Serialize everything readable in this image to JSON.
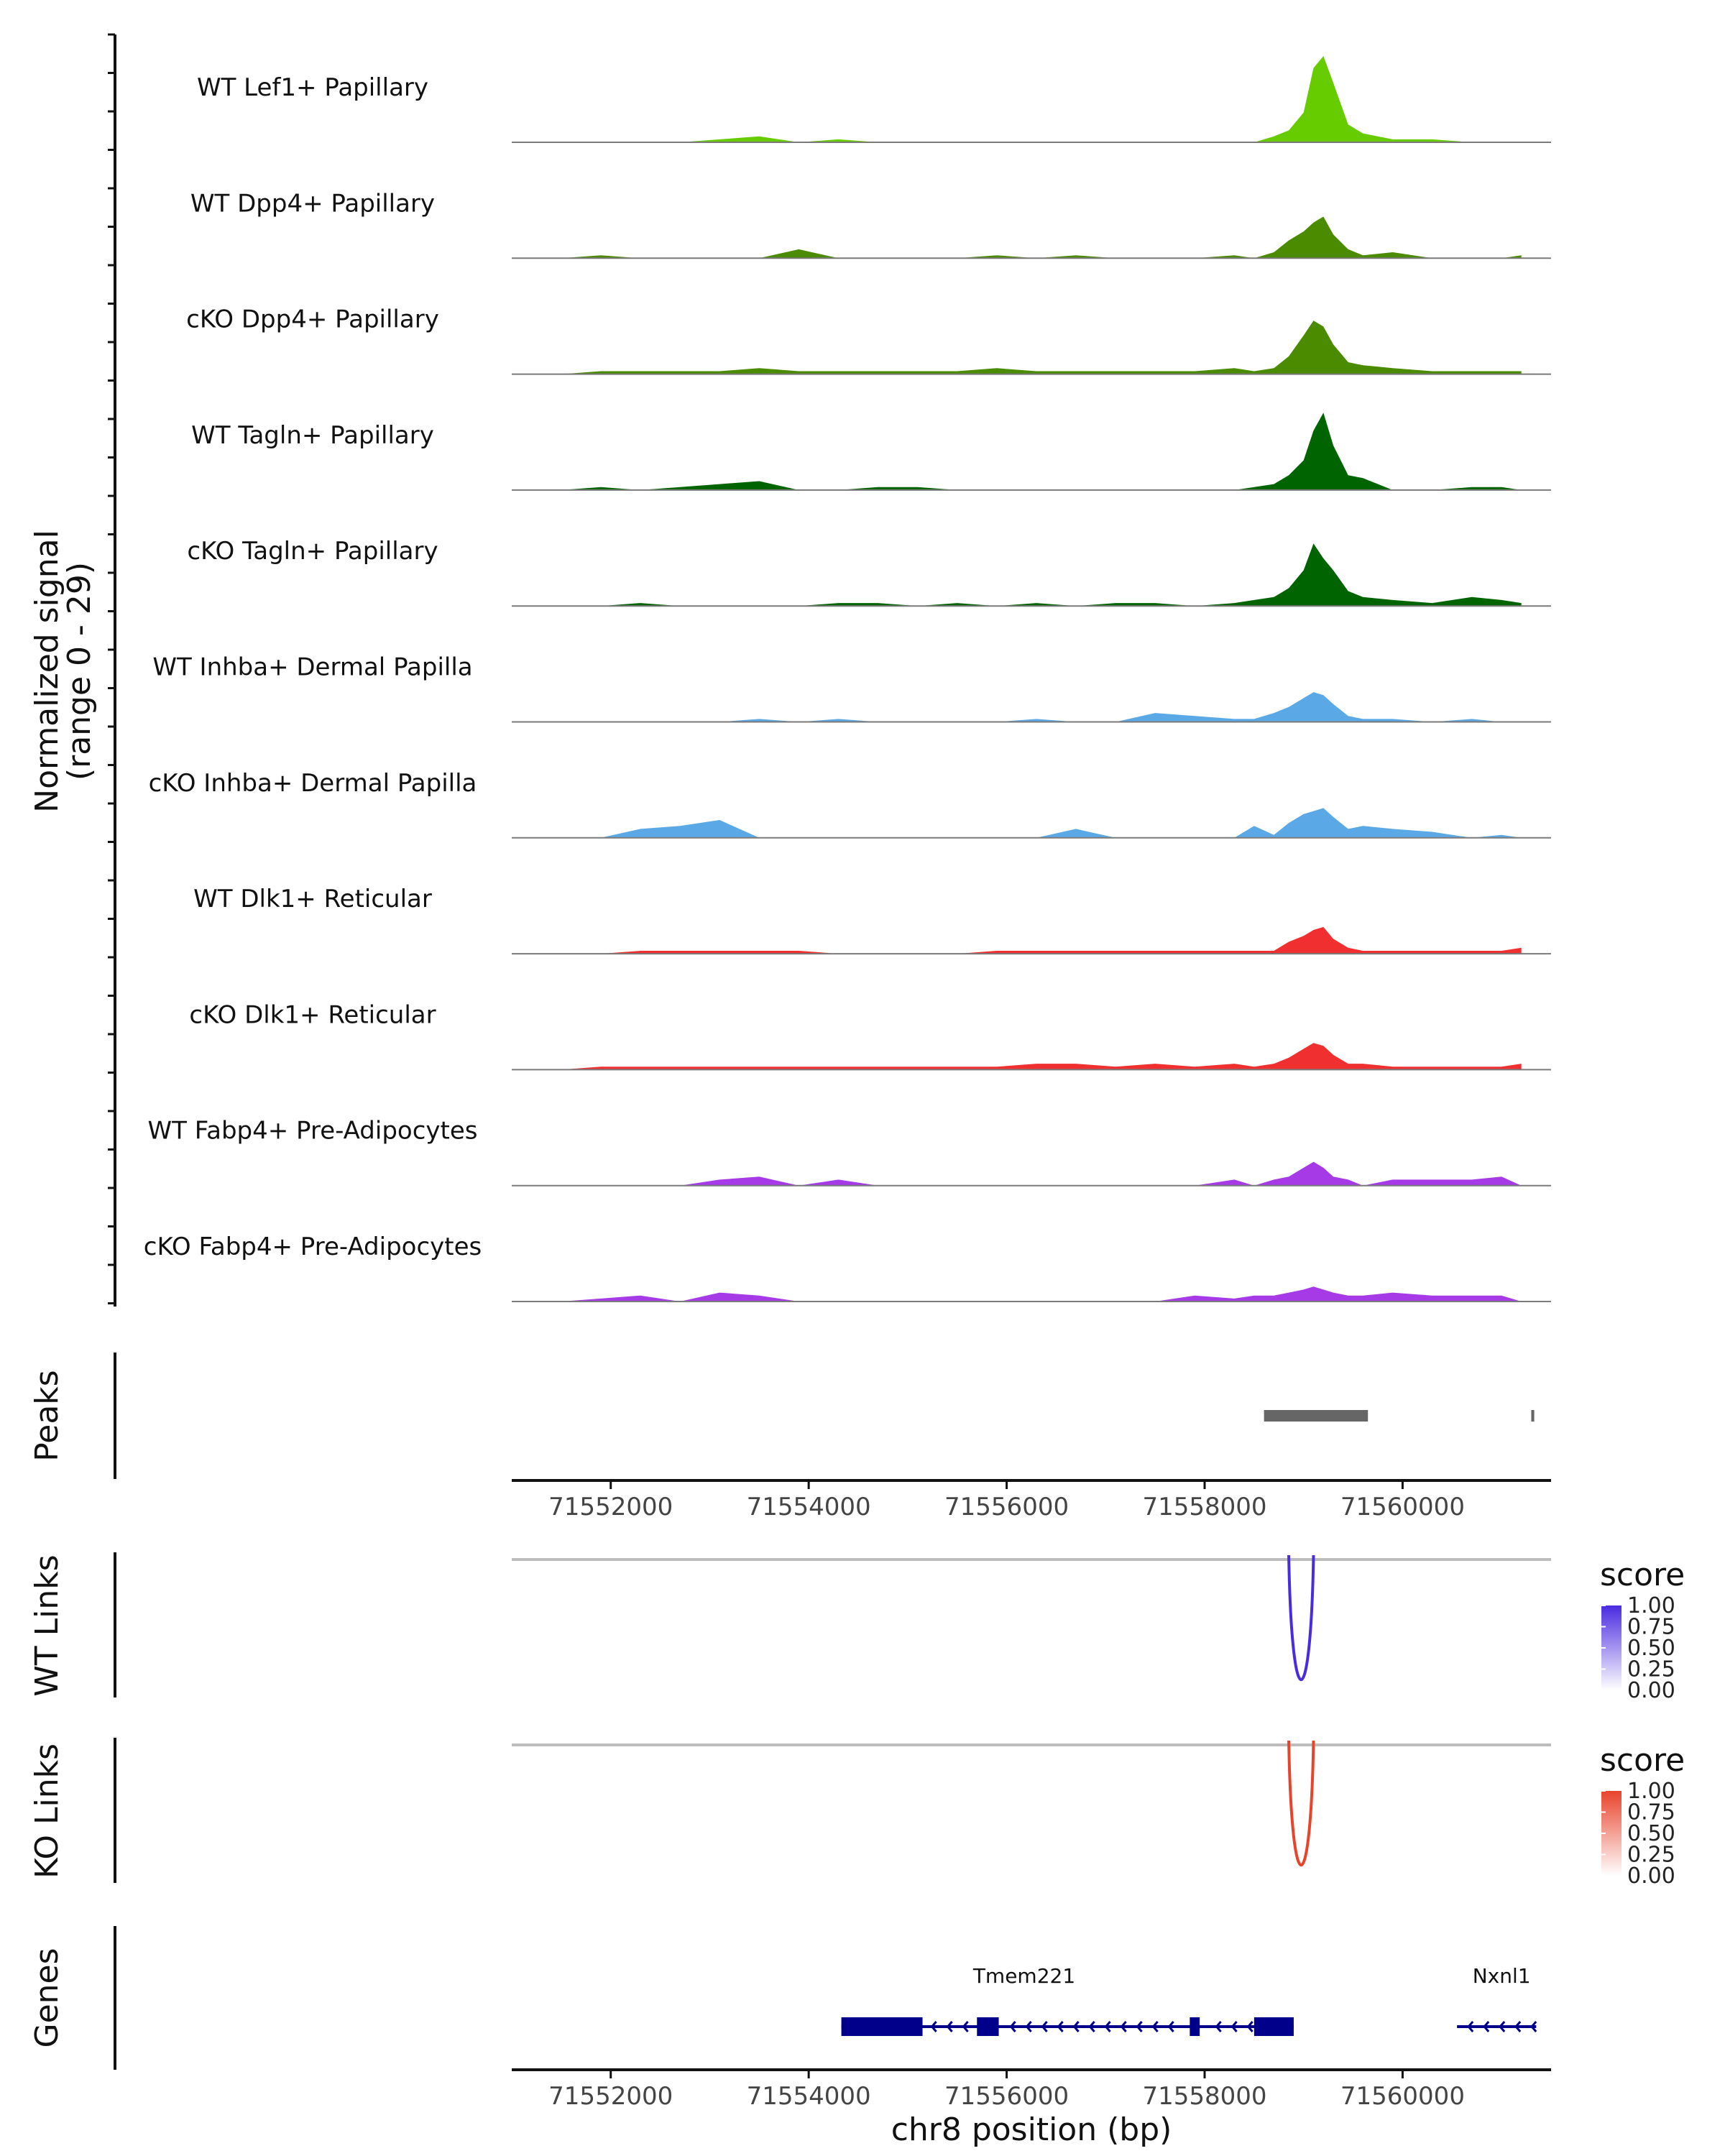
{
  "chart_data": {
    "type": "area",
    "title": "",
    "xlabel": "chr8 position (bp)",
    "xlim": [
      71551000,
      71561500
    ],
    "xticks": [
      71552000,
      71554000,
      71556000,
      71558000,
      71560000
    ],
    "xtick_labels": [
      "71552000",
      "71554000",
      "71556000",
      "71558000",
      "71560000"
    ],
    "coverage": {
      "ylabel_line1": "Normalized signal",
      "ylabel_line2": "(range 0 - 29)",
      "ylim": [
        0,
        29
      ],
      "x": [
        71551500,
        71551900,
        71552300,
        71552700,
        71553100,
        71553500,
        71553900,
        71554300,
        71554700,
        71555100,
        71555500,
        71555900,
        71556300,
        71556700,
        71557100,
        71557500,
        71557900,
        71558300,
        71558500,
        71558700,
        71558850,
        71559000,
        71559100,
        71559200,
        71559300,
        71559450,
        71559600,
        71559900,
        71560300,
        71560700,
        71561000,
        71561200
      ],
      "series": [
        {
          "name": "WT Lef1+ Papillary",
          "color": "#66cc00",
          "values": [
            0,
            0,
            0,
            0,
            1,
            2,
            0,
            1,
            0,
            0,
            0,
            0,
            0,
            0,
            0,
            0,
            0,
            0,
            0,
            2,
            4,
            10,
            25,
            29,
            20,
            6,
            3,
            1,
            1,
            0,
            0,
            0
          ]
        },
        {
          "name": "WT Dpp4+ Papillary",
          "color": "#4b8b00",
          "values": [
            0,
            1,
            0,
            0,
            0,
            0,
            3,
            0,
            0,
            0,
            0,
            1,
            0,
            1,
            0,
            0,
            0,
            1,
            0,
            2,
            6,
            9,
            12,
            14,
            8,
            3,
            1,
            2,
            0,
            0,
            0,
            1
          ]
        },
        {
          "name": "cKO Dpp4+ Papillary",
          "color": "#4b8b00",
          "values": [
            0,
            1,
            1,
            1,
            1,
            2,
            1,
            1,
            1,
            1,
            1,
            2,
            1,
            1,
            1,
            1,
            1,
            2,
            1,
            2,
            6,
            13,
            18,
            16,
            10,
            4,
            3,
            2,
            1,
            1,
            1,
            1
          ]
        },
        {
          "name": "WT Tagln+ Papillary",
          "color": "#006400",
          "values": [
            0,
            1,
            0,
            1,
            2,
            3,
            0,
            0,
            1,
            1,
            0,
            0,
            0,
            0,
            0,
            0,
            0,
            0,
            1,
            2,
            5,
            10,
            20,
            26,
            15,
            5,
            4,
            0,
            0,
            1,
            1,
            0
          ]
        },
        {
          "name": "cKO Tagln+ Papillary",
          "color": "#006400",
          "values": [
            0,
            0,
            1,
            0,
            0,
            0,
            0,
            1,
            1,
            0,
            1,
            0,
            1,
            0,
            1,
            1,
            0,
            1,
            2,
            3,
            6,
            12,
            21,
            16,
            12,
            5,
            3,
            2,
            1,
            3,
            2,
            1
          ]
        },
        {
          "name": "WT Inhba+ Dermal Papilla",
          "color": "#5aa9e6",
          "values": [
            0,
            0,
            0,
            0,
            0,
            1,
            0,
            1,
            0,
            0,
            0,
            0,
            1,
            0,
            0,
            3,
            2,
            1,
            1,
            3,
            5,
            8,
            10,
            9,
            6,
            2,
            1,
            1,
            0,
            1,
            0,
            0
          ]
        },
        {
          "name": "cKO Inhba+ Dermal Papilla",
          "color": "#5aa9e6",
          "values": [
            0,
            0,
            3,
            4,
            6,
            0,
            0,
            0,
            0,
            0,
            0,
            0,
            0,
            3,
            0,
            0,
            0,
            0,
            4,
            1,
            5,
            8,
            9,
            10,
            7,
            3,
            4,
            3,
            2,
            0,
            1,
            0
          ]
        },
        {
          "name": "WT Dlk1+ Reticular",
          "color": "#f03030",
          "values": [
            0,
            0,
            1,
            1,
            1,
            1,
            1,
            0,
            0,
            0,
            0,
            1,
            1,
            1,
            1,
            1,
            1,
            1,
            1,
            1,
            4,
            6,
            8,
            9,
            5,
            2,
            1,
            1,
            1,
            1,
            1,
            2
          ]
        },
        {
          "name": "cKO Dlk1+ Reticular",
          "color": "#f03030",
          "values": [
            0,
            1,
            1,
            1,
            1,
            1,
            1,
            1,
            1,
            1,
            1,
            1,
            2,
            2,
            1,
            2,
            1,
            2,
            1,
            2,
            4,
            7,
            9,
            8,
            5,
            2,
            2,
            1,
            1,
            1,
            1,
            2
          ]
        },
        {
          "name": "WT Fabp4+ Pre-Adipocytes",
          "color": "#a53ae6",
          "values": [
            0,
            0,
            0,
            0,
            2,
            3,
            0,
            2,
            0,
            0,
            0,
            0,
            0,
            0,
            0,
            0,
            0,
            2,
            0,
            2,
            3,
            6,
            8,
            6,
            3,
            2,
            0,
            2,
            2,
            2,
            3,
            0
          ]
        },
        {
          "name": "cKO Fabp4+ Pre-Adipocytes",
          "color": "#a53ae6",
          "values": [
            0,
            1,
            2,
            0,
            3,
            2,
            0,
            0,
            0,
            0,
            0,
            0,
            0,
            0,
            0,
            0,
            2,
            1,
            2,
            2,
            3,
            4,
            5,
            4,
            3,
            2,
            2,
            3,
            2,
            2,
            2,
            0
          ]
        }
      ]
    },
    "peaks": {
      "label": "Peaks",
      "color": "#666666",
      "regions": [
        [
          71558600,
          71559650
        ],
        [
          71561300,
          71561330
        ]
      ]
    },
    "links": [
      {
        "label": "WT Links",
        "legend_title": "score",
        "color": "#4b2be0",
        "start": 71558850,
        "end": 71559100,
        "score": 1.0
      },
      {
        "label": "KO Links",
        "legend_title": "score",
        "color": "#e8442c",
        "start": 71558850,
        "end": 71559100,
        "score": 1.0
      }
    ],
    "legend_ticks": [
      "1.00",
      "0.75",
      "0.50",
      "0.25",
      "0.00"
    ],
    "genes": {
      "label": "Genes",
      "color": "#00008b",
      "items": [
        {
          "name": "Tmem221",
          "start": 71554330,
          "end": 71558900,
          "strand": "-",
          "exons": [
            [
              71554330,
              71555150
            ],
            [
              71555700,
              71555920
            ],
            [
              71557850,
              71557950
            ],
            [
              71558500,
              71558900
            ]
          ]
        },
        {
          "name": "Nxnl1",
          "start": 71560550,
          "end": 71561350,
          "strand": "-",
          "exons": []
        }
      ]
    }
  }
}
